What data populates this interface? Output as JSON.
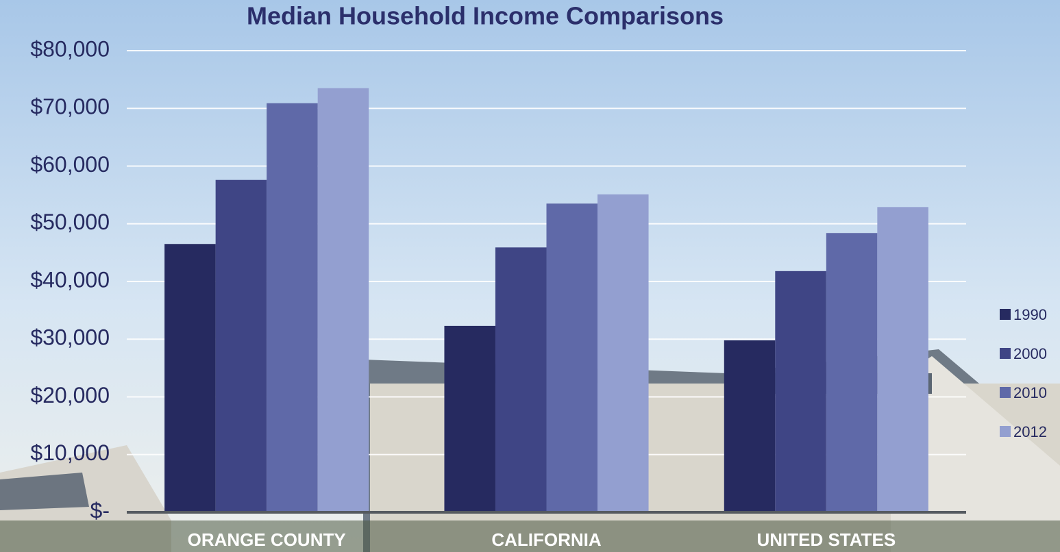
{
  "chart_data": {
    "type": "bar",
    "title": "Median Household Income Comparisons",
    "categories": [
      "ORANGE COUNTY",
      "CALIFORNIA",
      "UNITED STATES"
    ],
    "series": [
      {
        "name": "1990",
        "color": "#262a60",
        "values": [
          46500,
          32300,
          29800
        ]
      },
      {
        "name": "2000",
        "color": "#3f4585",
        "values": [
          57600,
          45900,
          41800
        ]
      },
      {
        "name": "2010",
        "color": "#5f69a8",
        "values": [
          70900,
          53500,
          48400
        ]
      },
      {
        "name": "2012",
        "color": "#939fd0",
        "values": [
          73500,
          55100,
          52900
        ]
      }
    ],
    "ylim": [
      0,
      80000
    ],
    "yticks": [
      {
        "value": 0,
        "label": "$-"
      },
      {
        "value": 10000,
        "label": "$10,000"
      },
      {
        "value": 20000,
        "label": "$20,000"
      },
      {
        "value": 30000,
        "label": "$30,000"
      },
      {
        "value": 40000,
        "label": "$40,000"
      },
      {
        "value": 50000,
        "label": "$50,000"
      },
      {
        "value": 60000,
        "label": "$60,000"
      },
      {
        "value": 70000,
        "label": "$70,000"
      },
      {
        "value": 80000,
        "label": "$80,000"
      }
    ],
    "grid": true,
    "legend": "right"
  }
}
